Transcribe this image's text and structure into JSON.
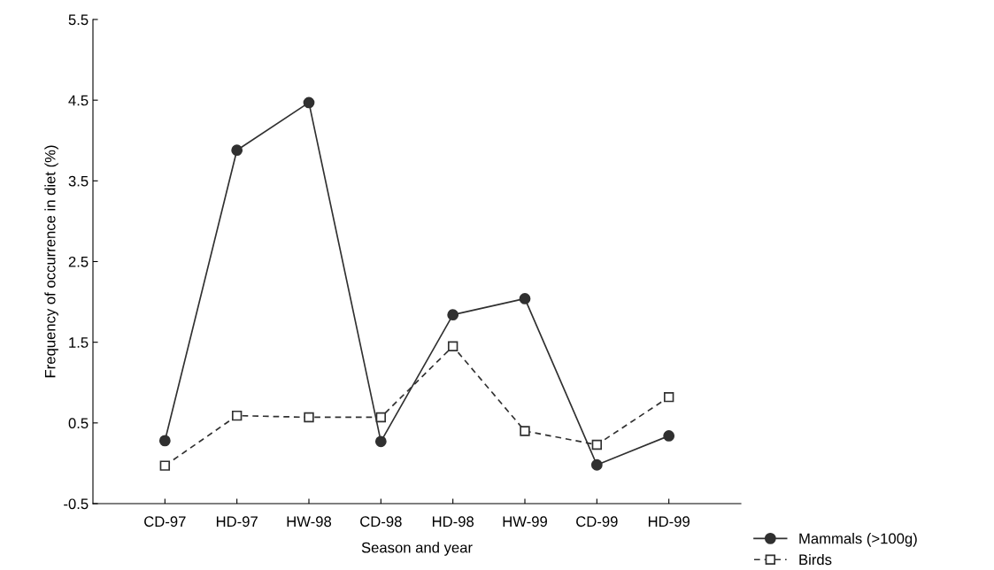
{
  "chart_data": {
    "type": "line",
    "xlabel": "Season and year",
    "ylabel": "Frequency of occurrence in diet (%)",
    "categories": [
      "CD-97",
      "HD-97",
      "HW-98",
      "CD-98",
      "HD-98",
      "HW-99",
      "CD-99",
      "HD-99"
    ],
    "series": [
      {
        "name": "Mammals (>100g)",
        "color": "#303030",
        "marker": "circle",
        "line_style": "solid",
        "values": [
          0.28,
          3.88,
          4.47,
          0.27,
          1.84,
          2.04,
          -0.02,
          0.34
        ]
      },
      {
        "name": "Birds",
        "color": "#303030",
        "marker": "square",
        "line_style": "dashed",
        "values": [
          -0.03,
          0.59,
          0.57,
          0.57,
          1.45,
          0.4,
          0.23,
          0.82
        ]
      }
    ],
    "ylim": [
      -0.5,
      5.5
    ],
    "yticks": [
      -0.5,
      0.5,
      1.5,
      2.5,
      3.5,
      4.5,
      5.5
    ],
    "grid": false,
    "legend": "bottom right"
  }
}
